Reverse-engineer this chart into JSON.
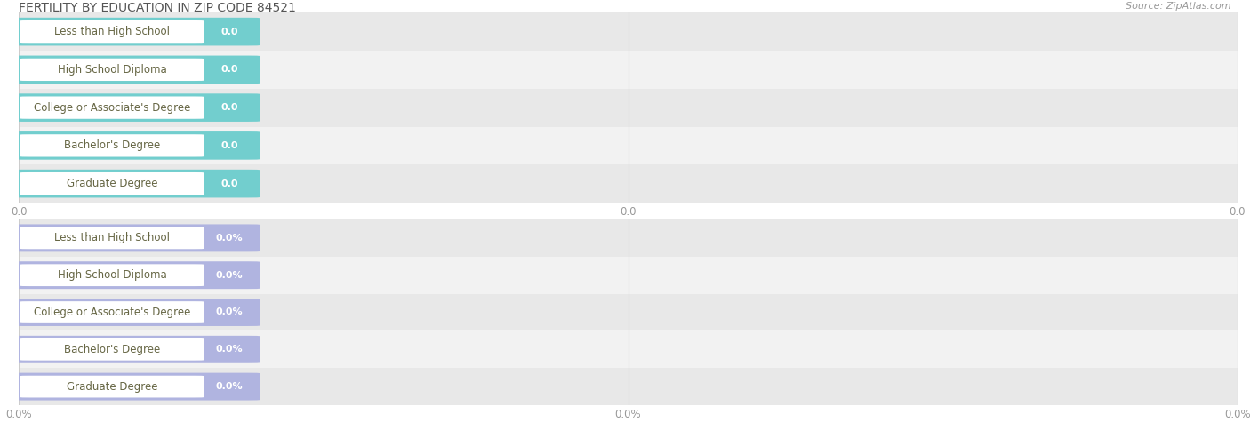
{
  "title": "FERTILITY BY EDUCATION IN ZIP CODE 84521",
  "source": "Source: ZipAtlas.com",
  "categories": [
    "Less than High School",
    "High School Diploma",
    "College or Associate's Degree",
    "Bachelor's Degree",
    "Graduate Degree"
  ],
  "top_values": [
    0.0,
    0.0,
    0.0,
    0.0,
    0.0
  ],
  "bottom_values": [
    0.0,
    0.0,
    0.0,
    0.0,
    0.0
  ],
  "top_bar_color": "#72cece",
  "bottom_bar_color": "#b0b4e0",
  "bar_text_color": "#ffffff",
  "label_text_color": "#666644",
  "row_bg_even": "#e8e8e8",
  "row_bg_odd": "#f2f2f2",
  "title_color": "#555555",
  "grid_color": "#cccccc",
  "top_xtick_labels": [
    "0.0",
    "0.0",
    "0.0"
  ],
  "bottom_xtick_labels": [
    "0.0%",
    "0.0%",
    "0.0%"
  ],
  "background_color": "#ffffff",
  "title_fontsize": 10,
  "source_fontsize": 8,
  "category_fontsize": 8.5,
  "value_fontsize": 8,
  "tick_fontsize": 8.5
}
